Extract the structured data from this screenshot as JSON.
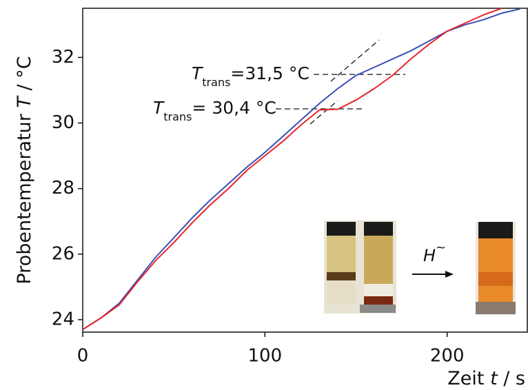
{
  "chart_data": {
    "type": "line",
    "y_label": {
      "text": "Probentemperatur",
      "symbol": "T",
      "unit": "/ °C"
    },
    "x_label": {
      "text": "Zeit",
      "symbol": "t",
      "unit": "/ s"
    },
    "x": [
      0,
      10,
      20,
      30,
      40,
      50,
      60,
      70,
      80,
      90,
      100,
      110,
      120,
      130,
      140,
      150,
      160,
      170,
      180,
      190,
      200,
      210,
      220,
      230,
      240
    ],
    "series": [
      {
        "color": "#3a4fb5",
        "values": [
          23.7,
          24.05,
          24.5,
          25.2,
          25.9,
          26.5,
          27.1,
          27.65,
          28.15,
          28.65,
          29.1,
          29.6,
          30.1,
          30.6,
          31.05,
          31.45,
          31.7,
          31.95,
          32.2,
          32.5,
          32.8,
          33.0,
          33.15,
          33.35,
          33.48
        ]
      },
      {
        "color": "#e8232a",
        "values": [
          23.7,
          24.05,
          24.45,
          25.15,
          25.8,
          26.35,
          26.95,
          27.5,
          28.0,
          28.55,
          29.0,
          29.45,
          29.95,
          30.4,
          30.42,
          30.7,
          31.05,
          31.45,
          31.95,
          32.4,
          32.8,
          33.05,
          33.3,
          33.5,
          null
        ]
      }
    ],
    "xlim": [
      0,
      244
    ],
    "ylim": [
      23.62,
      33.5
    ],
    "xticks": [
      0,
      100,
      200
    ],
    "yticks": [
      24,
      26,
      28,
      30,
      32
    ],
    "annotations": [
      {
        "symbol": "T",
        "subscript": "trans",
        "text": "=31,5 °C"
      },
      {
        "symbol": "T",
        "subscript": "trans",
        "text": "= 30,4 °C"
      }
    ],
    "inset_label": {
      "symbol": "H",
      "accent": "~"
    }
  }
}
